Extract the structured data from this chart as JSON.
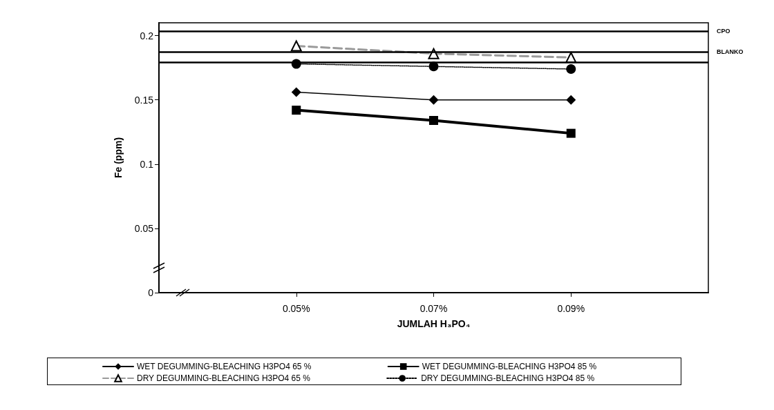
{
  "chart_data": {
    "type": "line",
    "xlabel": "JUMLAH H₃PO₄",
    "ylabel": "Fe (ppm)",
    "categories": [
      null,
      "0.05%",
      "0.07%",
      "0.09%",
      null
    ],
    "ylim": [
      0,
      0.21
    ],
    "yticks": [
      0,
      0.05,
      0.1,
      0.15,
      0.2
    ],
    "grid": false,
    "legend": "bottom",
    "series": [
      {
        "name": "WET DEGUMMING-BLEACHING H3PO4 65 %",
        "color": "#000000",
        "marker": "diamond",
        "line_style": "solid",
        "values": [
          null,
          0.156,
          0.15,
          0.15,
          null
        ]
      },
      {
        "name": "WET DEGUMMING-BLEACHING H3PO4 85 %",
        "color": "#000000",
        "marker": "square",
        "line_style": "solid",
        "values": [
          null,
          0.142,
          0.134,
          0.124,
          null
        ]
      },
      {
        "name": "DRY DEGUMMING-BLEACHING H3PO4 65 %",
        "color": "#9a9a9a",
        "marker": "triangle",
        "line_style": "dashed",
        "values": [
          null,
          0.192,
          0.186,
          0.183,
          null
        ]
      },
      {
        "name": "DRY DEGUMMING-BLEACHING H3PO4 85 %",
        "color": "#000000",
        "marker": "circle",
        "line_style": "dotted",
        "values": [
          null,
          0.178,
          0.176,
          0.174,
          null
        ]
      }
    ],
    "ref_lines": [
      {
        "axis": "y",
        "value": 0.2035,
        "label": "CPO"
      },
      {
        "axis": "y",
        "value": 0.1875,
        "label": "BLANKO"
      },
      {
        "axis": "y",
        "value": 0.1795,
        "label": null
      }
    ]
  }
}
